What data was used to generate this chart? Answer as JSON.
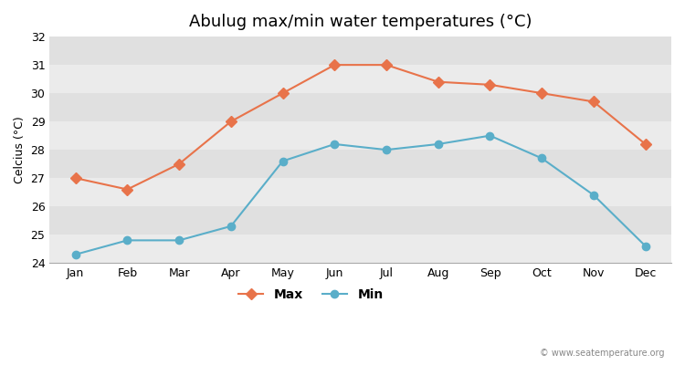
{
  "title": "Abulug max/min water temperatures (°C)",
  "ylabel": "Celcius (°C)",
  "months": [
    "Jan",
    "Feb",
    "Mar",
    "Apr",
    "May",
    "Jun",
    "Jul",
    "Aug",
    "Sep",
    "Oct",
    "Nov",
    "Dec"
  ],
  "max_temps": [
    27.0,
    26.6,
    27.5,
    29.0,
    30.0,
    31.0,
    31.0,
    30.4,
    30.3,
    30.0,
    29.7,
    28.2
  ],
  "min_temps": [
    24.3,
    24.8,
    24.8,
    25.3,
    27.6,
    28.2,
    28.0,
    28.2,
    28.5,
    27.7,
    26.4,
    24.6
  ],
  "max_color": "#e8734a",
  "min_color": "#5aaec9",
  "outer_bg_color": "#ffffff",
  "plot_bg_color": "#f0f0f0",
  "band_color_light": "#ebebeb",
  "band_color_dark": "#e0e0e0",
  "ylim": [
    24,
    32
  ],
  "yticks": [
    24,
    25,
    26,
    27,
    28,
    29,
    30,
    31,
    32
  ],
  "watermark": "© www.seatemperature.org",
  "legend_labels": [
    "Max",
    "Min"
  ],
  "title_fontsize": 13,
  "label_fontsize": 9,
  "tick_fontsize": 9,
  "max_marker": "D",
  "min_marker": "o",
  "marker_size": 6,
  "linewidth": 1.5
}
